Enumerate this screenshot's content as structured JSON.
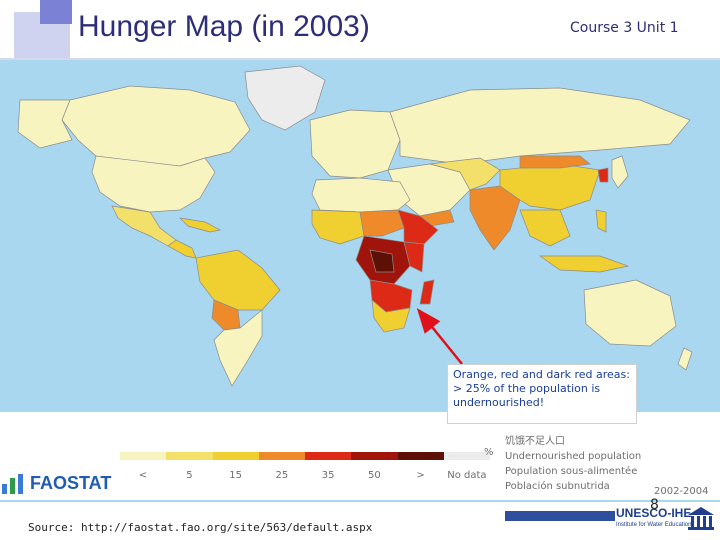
{
  "header": {
    "title": "Hunger Map (in 2003)",
    "course": "Course 3 Unit 1"
  },
  "map": {
    "ocean_color": "#a9d7ef",
    "categories": [
      {
        "label": "<",
        "color": "#f7f4c0"
      },
      {
        "label": "5",
        "color": "#f2e06b"
      },
      {
        "label": "15",
        "color": "#f0cf30"
      },
      {
        "label": "25",
        "color": "#ee8a2a"
      },
      {
        "label": "35",
        "color": "#dd2a16"
      },
      {
        "label": "50",
        "color": "#a0140c"
      },
      {
        "label": ">",
        "color": "#5c1006"
      },
      {
        "label": "No data",
        "color": "#ececec"
      }
    ],
    "legend_title": [
      "饥饿不足人口",
      "Undernourished population",
      "Population sous-alimentée",
      "Población subnutrida"
    ],
    "legend_unit": "%",
    "legend_years": "2002-2004"
  },
  "callout": {
    "text": "Orange, red and dark red areas: > 25% of the population is undernourished!"
  },
  "branding": {
    "faostat": "FAOSTAT",
    "unesco": "UNESCO-IHE",
    "unesco_sub": "Institute for Water Education"
  },
  "footer": {
    "page_number": "8",
    "source": "Source: http://faostat.fao.org/site/563/default.aspx"
  }
}
